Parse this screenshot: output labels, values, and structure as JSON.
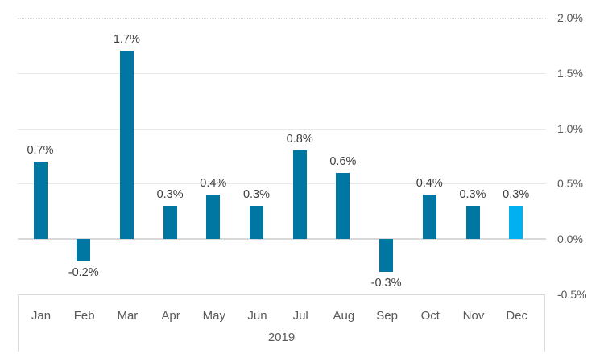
{
  "chart_data": {
    "type": "bar",
    "title": "",
    "xlabel": "",
    "ylabel": "",
    "categories": [
      "Jan",
      "Feb",
      "Mar",
      "Apr",
      "May",
      "Jun",
      "Jul",
      "Aug",
      "Sep",
      "Oct",
      "Nov",
      "Dec"
    ],
    "values": [
      0.7,
      -0.2,
      1.7,
      0.3,
      0.4,
      0.3,
      0.8,
      0.6,
      -0.3,
      0.4,
      0.3,
      0.3
    ],
    "data_labels": [
      "0.7%",
      "-0.2%",
      "1.7%",
      "0.3%",
      "0.4%",
      "0.3%",
      "0.8%",
      "0.6%",
      "-0.3%",
      "0.4%",
      "0.3%",
      "0.3%"
    ],
    "x_group_label": "2019",
    "ylim": [
      -0.5,
      2.0
    ],
    "yticks": [
      {
        "value": 2.0,
        "label": "2.0%"
      },
      {
        "value": 1.5,
        "label": "1.5%"
      },
      {
        "value": 1.0,
        "label": "1.0%"
      },
      {
        "value": 0.5,
        "label": "0.5%"
      },
      {
        "value": 0.0,
        "label": "0.0%"
      },
      {
        "value": -0.5,
        "label": "-0.5%"
      }
    ],
    "grid": true,
    "legend": "none",
    "bar_color": "#0076a3",
    "highlight_color": "#00b0f0",
    "highlight_index": 11,
    "axis_text_color": "#595959",
    "label_text_color": "#3f3f3f",
    "gridline_color": "#e9e9e9",
    "zero_line_color": "#d9d9d9"
  }
}
